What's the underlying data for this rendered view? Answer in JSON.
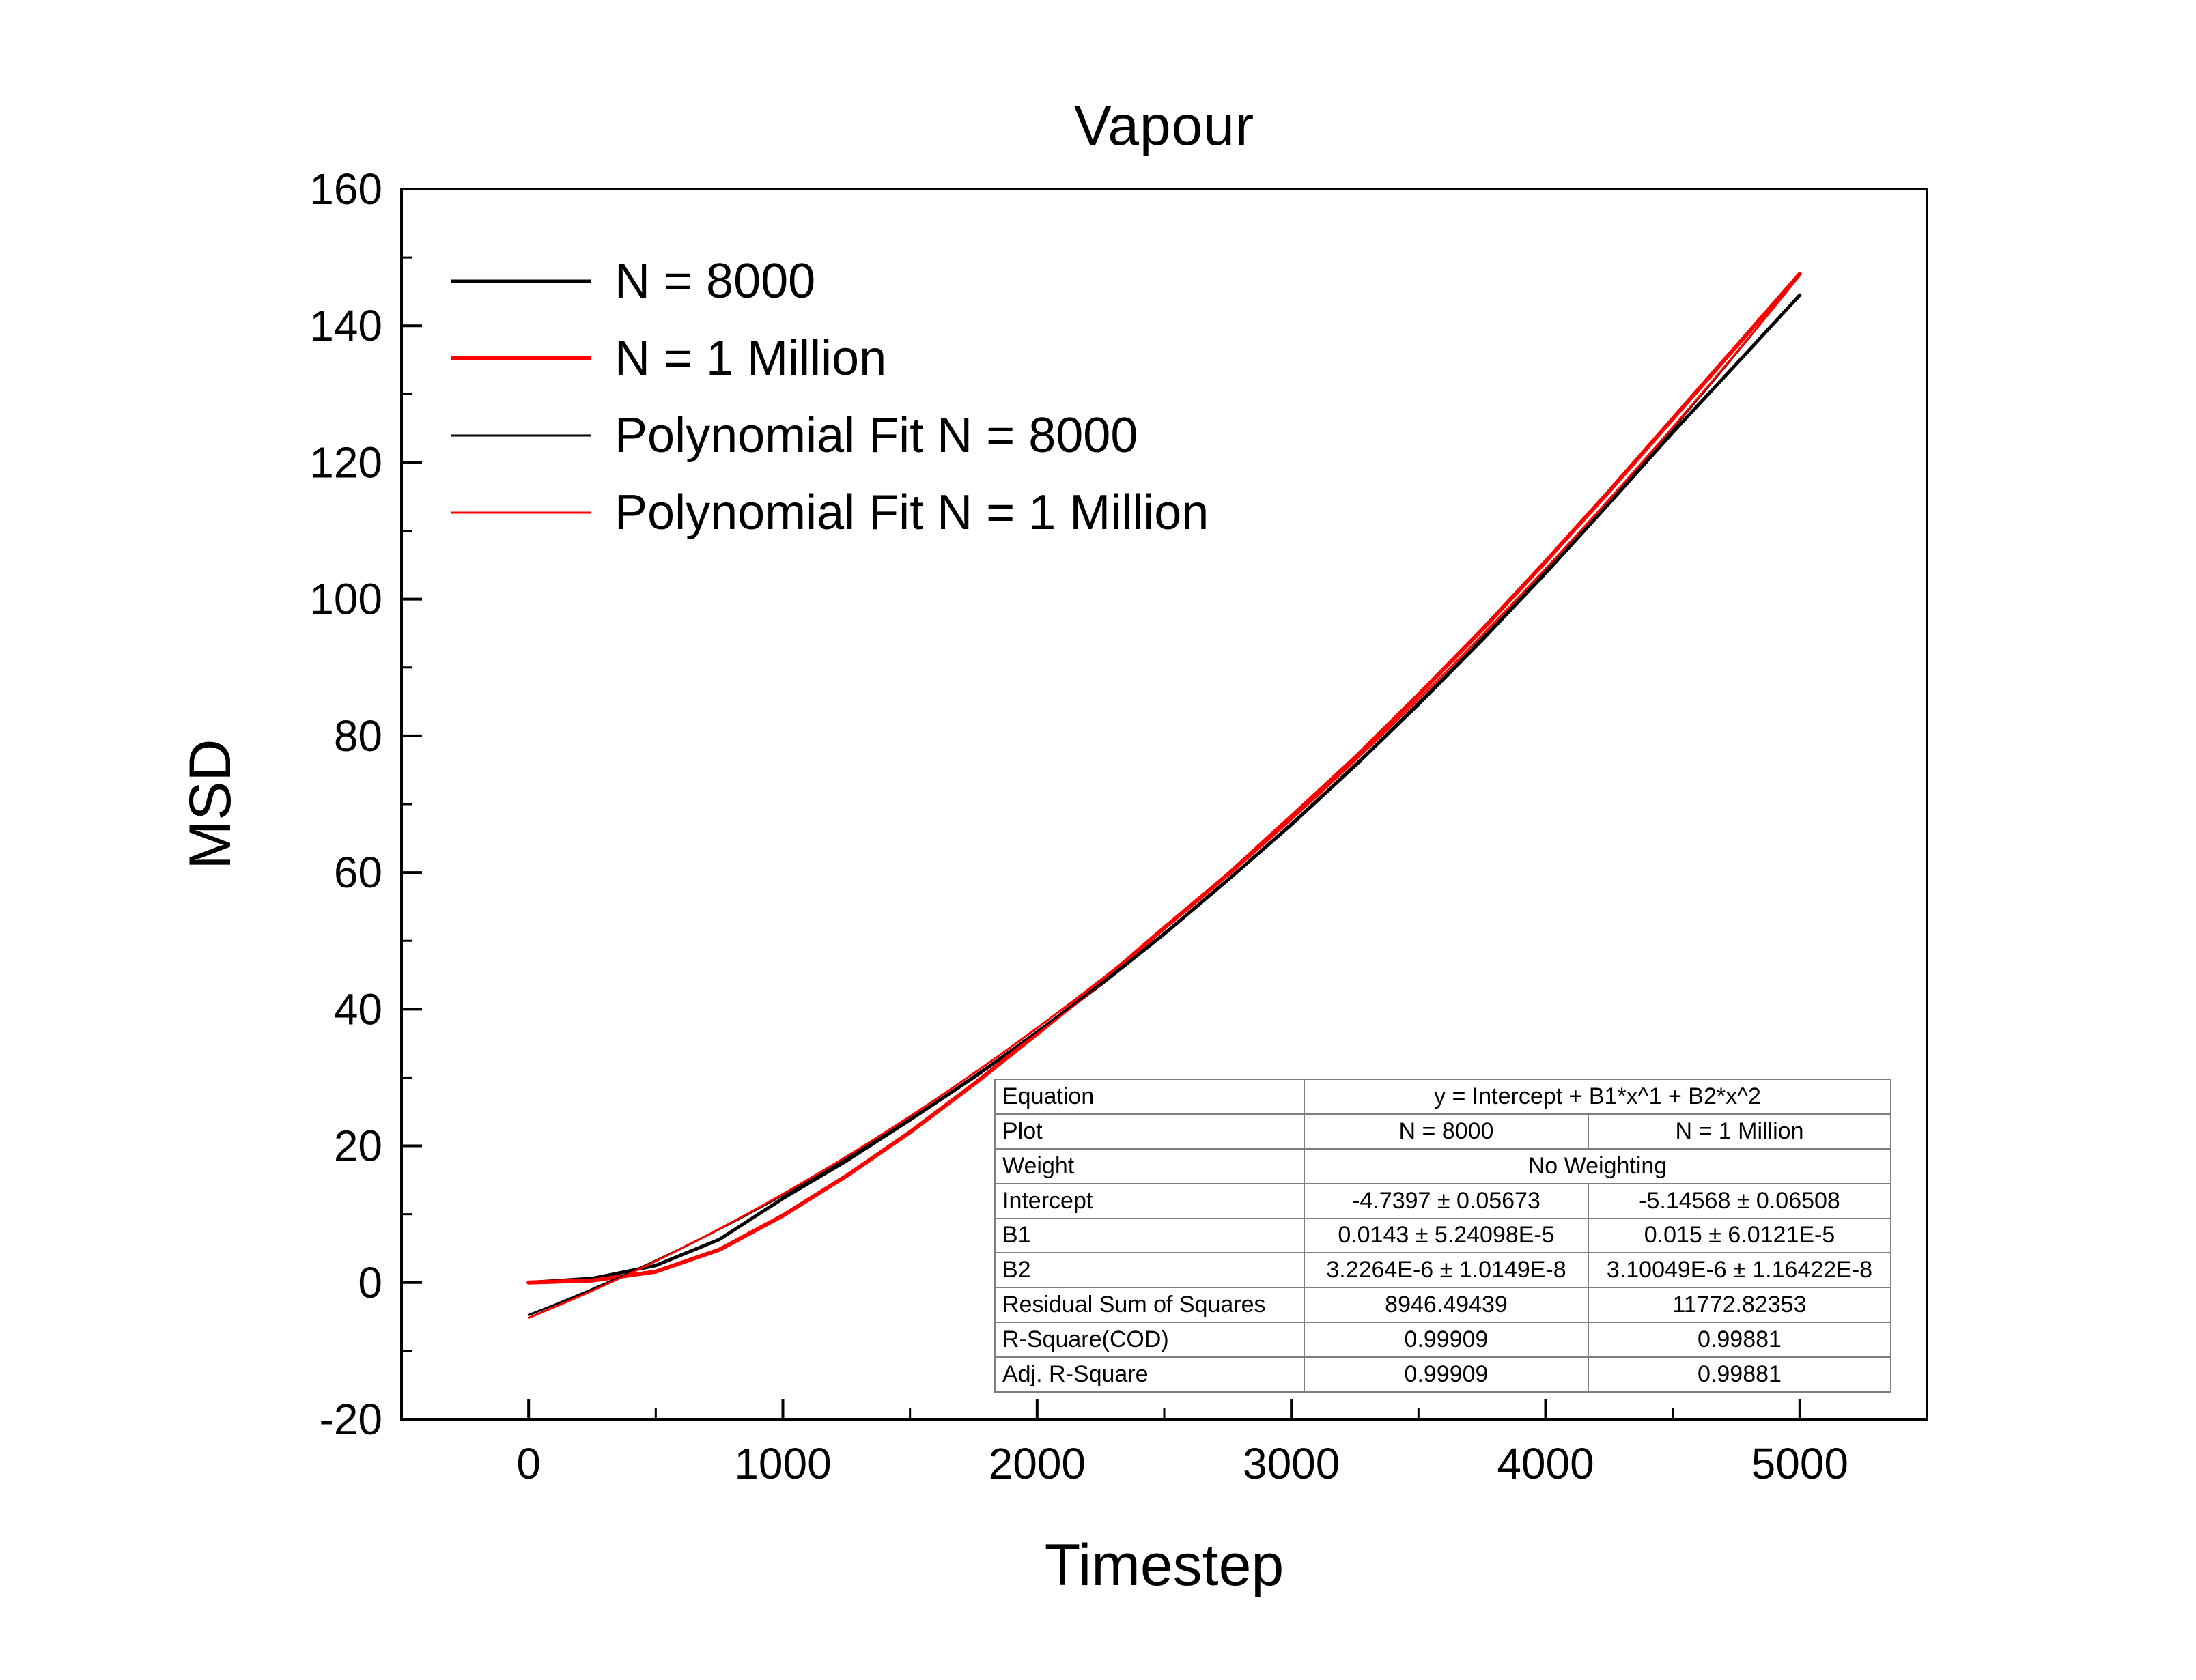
{
  "chart_data": {
    "type": "line",
    "title": "Vapour",
    "xlabel": "Timestep",
    "ylabel": "MSD",
    "xlim": [
      -500,
      5500
    ],
    "ylim": [
      -20,
      160
    ],
    "xticks": [
      0,
      1000,
      2000,
      3000,
      4000,
      5000
    ],
    "yticks": [
      -20,
      0,
      20,
      40,
      60,
      80,
      100,
      120,
      140,
      160
    ],
    "x_minor_step": 500,
    "y_minor_step": 10,
    "grid": false,
    "legend_position": "top-left",
    "series": [
      {
        "name": "N = 8000",
        "kind": "data",
        "color": "#000000",
        "width": 5,
        "x": [
          0,
          250,
          500,
          750,
          1000,
          1250,
          1500,
          1750,
          2000,
          2250,
          2500,
          2750,
          3000,
          3250,
          3500,
          3750,
          4000,
          4250,
          4500,
          4750,
          5000
        ],
        "y": [
          0,
          0.6,
          2.5,
          6.3,
          12.3,
          17.8,
          23.8,
          30.0,
          36.6,
          43.6,
          51.0,
          58.9,
          67.0,
          75.6,
          84.6,
          94.0,
          103.8,
          114.0,
          124.4,
          134.4,
          144.5
        ]
      },
      {
        "name": "N = 1 Million",
        "kind": "data",
        "color": "#ff0000",
        "width": 6,
        "x": [
          0,
          250,
          500,
          750,
          1000,
          1250,
          1500,
          1750,
          2000,
          2250,
          2500,
          2750,
          3000,
          3250,
          3500,
          3750,
          4000,
          4250,
          4500,
          4750,
          5000
        ],
        "y": [
          0,
          0.3,
          1.6,
          4.8,
          9.8,
          15.6,
          22.0,
          29.0,
          36.4,
          43.9,
          51.9,
          59.7,
          68.2,
          76.8,
          86.0,
          95.5,
          105.5,
          115.8,
          126.4,
          137.0,
          147.6
        ]
      },
      {
        "name": "Polynomial Fit N = 8000",
        "kind": "fit",
        "color": "#000000",
        "width": 3,
        "coefficients": {
          "intercept": -4.7397,
          "B1": 0.0143,
          "B2": 3.2264e-06
        },
        "x_range": [
          0,
          5000
        ]
      },
      {
        "name": "Polynomial Fit N = 1 Million",
        "kind": "fit",
        "color": "#ff0000",
        "width": 3,
        "coefficients": {
          "intercept": -5.14568,
          "B1": 0.015,
          "B2": 3.10049e-06
        },
        "x_range": [
          0,
          5000
        ]
      }
    ],
    "fit_table": {
      "rows": [
        {
          "label": "Equation",
          "values": [
            "y = Intercept + B1*x^1 + B2*x^2"
          ],
          "span": true
        },
        {
          "label": "Plot",
          "values": [
            "N = 8000",
            "N = 1 Million"
          ],
          "span": false
        },
        {
          "label": "Weight",
          "values": [
            "No Weighting"
          ],
          "span": true
        },
        {
          "label": "Intercept",
          "values": [
            "-4.7397 ± 0.05673",
            "-5.14568 ± 0.06508"
          ],
          "span": false
        },
        {
          "label": "B1",
          "values": [
            "0.0143 ± 5.24098E-5",
            "0.015 ± 6.0121E-5"
          ],
          "span": false
        },
        {
          "label": "B2",
          "values": [
            "3.2264E-6 ± 1.0149E-8",
            "3.10049E-6 ± 1.16422E-8"
          ],
          "span": false
        },
        {
          "label": "Residual Sum of Squares",
          "values": [
            "8946.49439",
            "11772.82353"
          ],
          "span": false
        },
        {
          "label": "R-Square(COD)",
          "values": [
            "0.99909",
            "0.99881"
          ],
          "span": false
        },
        {
          "label": "Adj. R-Square",
          "values": [
            "0.99909",
            "0.99881"
          ],
          "span": false
        }
      ]
    }
  }
}
